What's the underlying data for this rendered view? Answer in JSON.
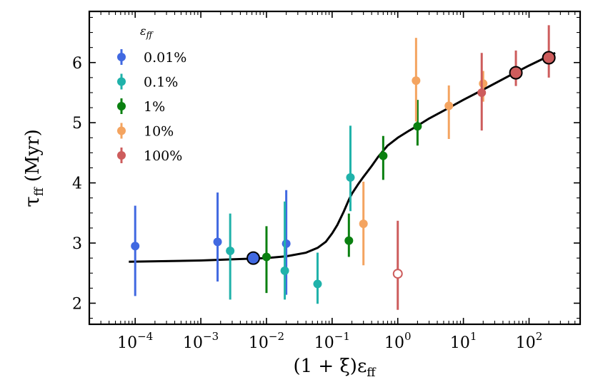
{
  "chart_data": {
    "type": "scatter",
    "title": "",
    "xlabel": "(1 + ξ)εff",
    "xlabel_main": "(1 + ξ)ε",
    "xlabel_sub": "ff",
    "ylabel": "τff (Myr)",
    "ylabel_main": "τ",
    "ylabel_sub": "ff",
    "ylabel_unit": "(Myr)",
    "xscale": "log",
    "xlim": [
      2e-05,
      600
    ],
    "ylim": [
      1.65,
      6.85
    ],
    "x_ticks": [
      {
        "value": 0.0001,
        "base": "10",
        "exp": "−4"
      },
      {
        "value": 0.001,
        "base": "10",
        "exp": "−3"
      },
      {
        "value": 0.01,
        "base": "10",
        "exp": "−2"
      },
      {
        "value": 0.1,
        "base": "10",
        "exp": "−1"
      },
      {
        "value": 1,
        "base": "10",
        "exp": "0"
      },
      {
        "value": 10,
        "base": "10",
        "exp": "1"
      },
      {
        "value": 100,
        "base": "10",
        "exp": "2"
      }
    ],
    "y_ticks": [
      {
        "value": 2,
        "label": "2"
      },
      {
        "value": 3,
        "label": "3"
      },
      {
        "value": 4,
        "label": "4"
      },
      {
        "value": 5,
        "label": "5"
      },
      {
        "value": 6,
        "label": "6"
      }
    ],
    "legend": {
      "title_main": "ε",
      "title_sub": "ff",
      "placement": "top-left",
      "entries": [
        {
          "label": "0.01%",
          "color": "#4169E1"
        },
        {
          "label": "0.1%",
          "color": "#20B2AA"
        },
        {
          "label": "1%",
          "color": "#0A8010"
        },
        {
          "label": "10%",
          "color": "#F4A460"
        },
        {
          "label": "100%",
          "color": "#CD5C5C"
        }
      ]
    },
    "series": [
      {
        "name": "0.01%",
        "color": "#4169E1",
        "points": [
          {
            "x": 0.0001,
            "y": 2.95,
            "ylo": 2.12,
            "yhi": 3.62
          },
          {
            "x": 0.0018,
            "y": 3.02,
            "ylo": 2.36,
            "yhi": 3.84
          },
          {
            "x": 0.02,
            "y": 2.99,
            "ylo": 2.14,
            "yhi": 3.88
          }
        ]
      },
      {
        "name": "0.1%",
        "color": "#20B2AA",
        "points": [
          {
            "x": 0.0028,
            "y": 2.87,
            "ylo": 2.06,
            "yhi": 3.49
          },
          {
            "x": 0.019,
            "y": 2.54,
            "ylo": 2.06,
            "yhi": 3.69
          },
          {
            "x": 0.06,
            "y": 2.32,
            "ylo": 1.99,
            "yhi": 2.84
          },
          {
            "x": 0.19,
            "y": 4.09,
            "ylo": 3.53,
            "yhi": 4.95
          }
        ]
      },
      {
        "name": "1%",
        "color": "#0A8010",
        "points": [
          {
            "x": 0.01,
            "y": 2.77,
            "ylo": 2.17,
            "yhi": 3.28
          },
          {
            "x": 0.18,
            "y": 3.04,
            "ylo": 2.77,
            "yhi": 3.49
          },
          {
            "x": 0.6,
            "y": 4.45,
            "ylo": 4.05,
            "yhi": 4.78
          },
          {
            "x": 2.0,
            "y": 4.94,
            "ylo": 4.62,
            "yhi": 5.38
          }
        ]
      },
      {
        "name": "10%",
        "color": "#F4A460",
        "points": [
          {
            "x": 0.3,
            "y": 3.32,
            "ylo": 2.63,
            "yhi": 4.02
          },
          {
            "x": 1.9,
            "y": 5.7,
            "ylo": 5.02,
            "yhi": 6.41
          },
          {
            "x": 6.0,
            "y": 5.28,
            "ylo": 4.73,
            "yhi": 5.62
          },
          {
            "x": 20,
            "y": 5.65,
            "ylo": 5.35,
            "yhi": 5.86
          }
        ]
      },
      {
        "name": "100%",
        "color": "#CD5C5C",
        "points": [
          {
            "x": 1.0,
            "y": 2.49,
            "ylo": 1.89,
            "yhi": 3.37,
            "hollow": true
          },
          {
            "x": 19,
            "y": 5.5,
            "ylo": 4.87,
            "yhi": 6.16
          }
        ]
      }
    ],
    "highlight_points": [
      {
        "x": 0.0063,
        "y": 2.75,
        "color": "#4169E1"
      },
      {
        "x": 63,
        "y": 5.83,
        "color": "#CD5C5C",
        "ylo": 5.61,
        "yhi": 6.2
      },
      {
        "x": 200,
        "y": 6.08,
        "color": "#CD5C5C",
        "ylo": 5.75,
        "yhi": 6.62
      }
    ],
    "fit_curve": {
      "color": "#000000",
      "x": [
        8e-05,
        0.0003,
        0.001,
        0.003,
        0.01,
        0.02,
        0.04,
        0.06,
        0.08,
        0.1,
        0.12,
        0.15,
        0.18,
        0.2,
        0.25,
        0.3,
        0.4,
        0.5,
        0.7,
        1,
        1.5,
        2,
        3,
        5,
        10,
        20,
        50,
        100,
        250
      ],
      "y": [
        2.69,
        2.7,
        2.71,
        2.73,
        2.75,
        2.78,
        2.84,
        2.92,
        3.02,
        3.16,
        3.3,
        3.52,
        3.72,
        3.82,
        3.98,
        4.1,
        4.28,
        4.43,
        4.62,
        4.75,
        4.87,
        4.95,
        5.07,
        5.2,
        5.38,
        5.55,
        5.78,
        5.95,
        6.16
      ]
    }
  }
}
